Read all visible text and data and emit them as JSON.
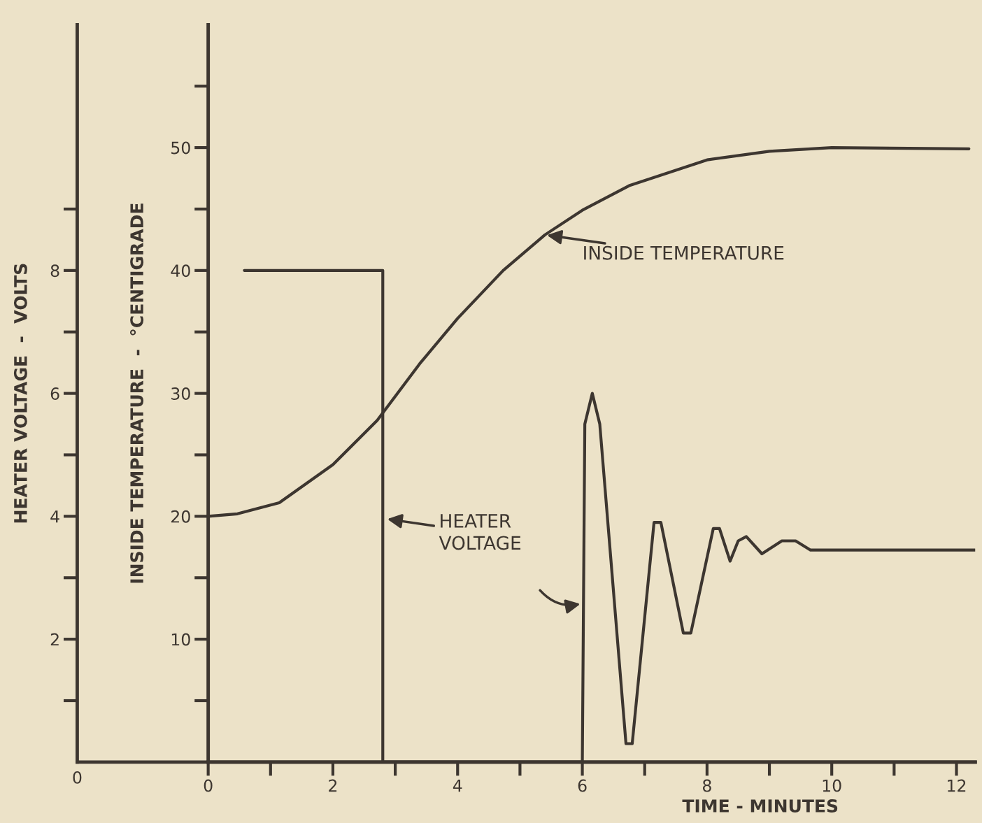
{
  "chart_data": {
    "type": "line",
    "xlabel": "TIME - MINUTES",
    "ylabel": "INSIDE TEMPERATURE  -  °CENTIGRADE",
    "y2label": "HEATER VOLTAGE  -  VOLTS",
    "xlim": [
      0,
      12.3
    ],
    "xticks": [
      0,
      2,
      4,
      6,
      8,
      10,
      12
    ],
    "ylim": [
      0,
      60
    ],
    "yticks": [
      10,
      20,
      30,
      40,
      50
    ],
    "y2lim": [
      0,
      12
    ],
    "y2ticks": [
      2,
      4,
      6,
      8
    ],
    "marker": "none",
    "line_style": "solid",
    "series": [
      {
        "color": "#3d3630",
        "x": [
          0,
          0.47,
          1.14,
          2,
          2.71,
          3.39,
          4,
          4.73,
          5.4,
          6,
          6.75,
          8,
          9,
          10,
          12.2
        ],
        "values": [
          20,
          20.2,
          21.1,
          24.2,
          27.8,
          32.4,
          36.1,
          40,
          42.9,
          44.9,
          46.9,
          49,
          49.7,
          50,
          49.9
        ]
      },
      {
        "color": "#3d3630",
        "axis": "y2",
        "x": [
          0.58,
          2.8,
          2.8,
          6.0,
          6.04,
          6.16,
          6.28,
          6.7,
          6.8,
          7.15,
          7.26,
          7.62,
          7.74,
          8.1,
          8.2,
          8.37,
          8.5,
          8.63,
          8.88,
          9.2,
          9.42,
          9.66,
          12.3
        ],
        "values": [
          8,
          8,
          0,
          0,
          5.5,
          6,
          5.5,
          0.3,
          0.3,
          3.9,
          3.9,
          2.1,
          2.1,
          3.8,
          3.8,
          3.27,
          3.6,
          3.67,
          3.39,
          3.6,
          3.6,
          3.45,
          3.45
        ]
      }
    ],
    "annotations": [
      {
        "text": "INSIDE TEMPERATURE",
        "x": 5.4,
        "y": 42.9
      },
      "HEATER\nVOLTAGE",
      "0"
    ]
  }
}
